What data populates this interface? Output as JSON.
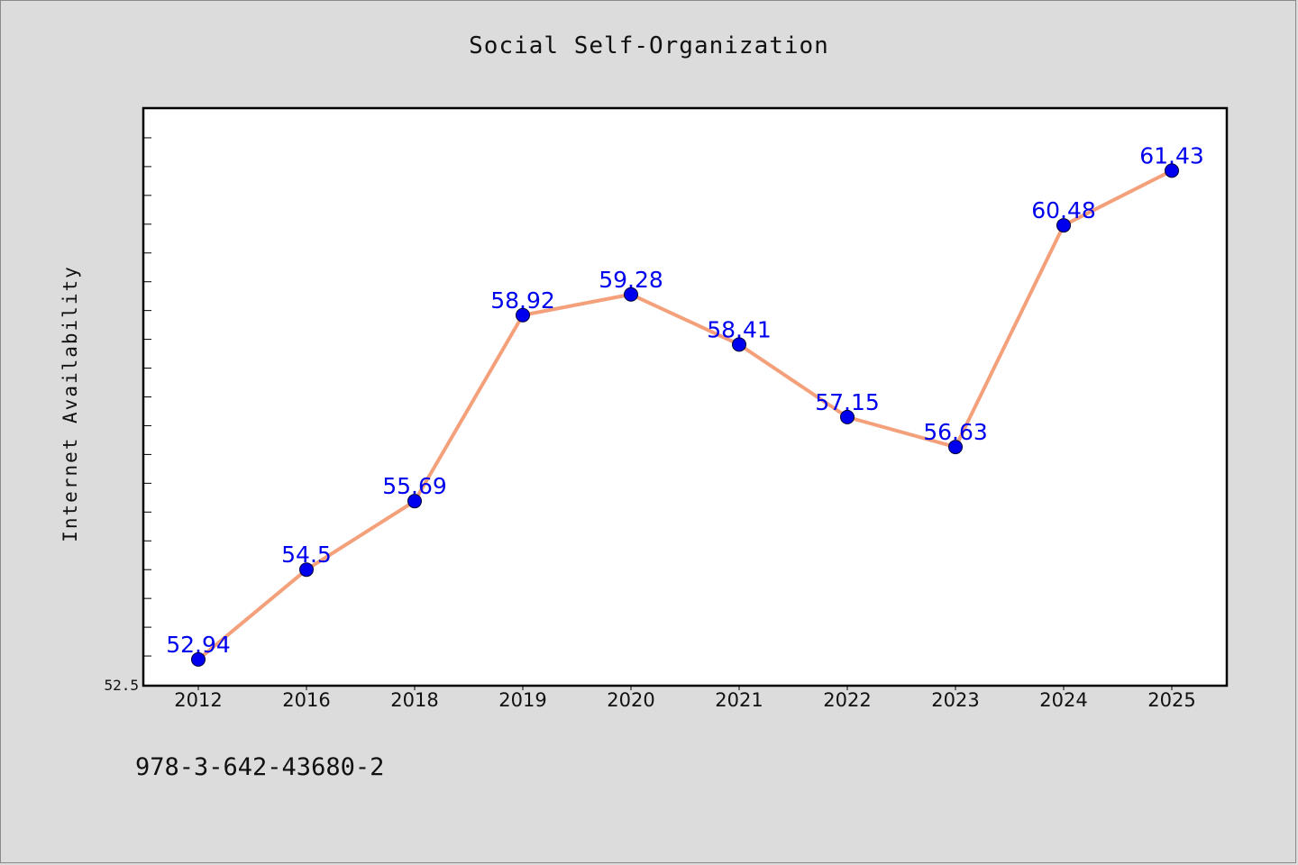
{
  "chart_data": {
    "type": "line",
    "title": "Social Self-Organization",
    "xlabel": "",
    "ylabel": "Internet Availability",
    "categories": [
      "2012",
      "2016",
      "2018",
      "2019",
      "2020",
      "2021",
      "2022",
      "2023",
      "2024",
      "2025"
    ],
    "series": [
      {
        "values": [
          52.94,
          54.5,
          55.69,
          58.92,
          59.28,
          58.41,
          57.15,
          56.63,
          60.48,
          61.43
        ],
        "line_color": "#f4a07a",
        "marker_color": "#0000ee",
        "label_color": "#0000ee"
      }
    ],
    "ylim": [
      52.5,
      62.5
    ],
    "y_tick_labels": [
      "52.5"
    ],
    "grid": false,
    "data_labels": true
  },
  "footer": {
    "id_text": "978-3-642-43680-2"
  }
}
